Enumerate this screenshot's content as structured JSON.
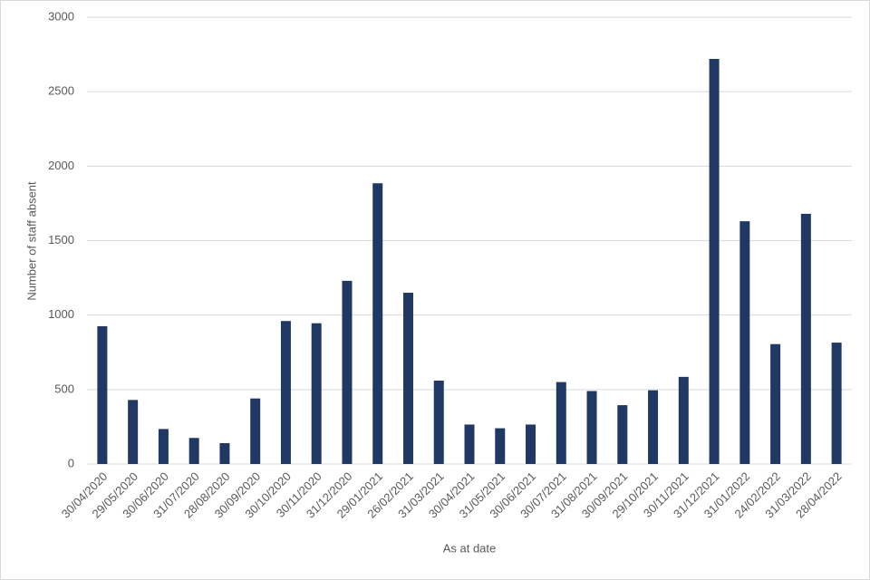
{
  "chart_data": {
    "type": "bar",
    "x_label": "As at date",
    "y_label": "Number of staff absent",
    "categories": [
      "30/04/2020",
      "29/05/2020",
      "30/06/2020",
      "31/07/2020",
      "28/08/2020",
      "30/09/2020",
      "30/10/2020",
      "30/11/2020",
      "31/12/2020",
      "29/01/2021",
      "26/02/2021",
      "31/03/2021",
      "30/04/2021",
      "31/05/2021",
      "30/06/2021",
      "30/07/2021",
      "31/08/2021",
      "30/09/2021",
      "29/10/2021",
      "30/11/2021",
      "31/12/2021",
      "31/01/2022",
      "24/02/2022",
      "31/03/2022",
      "28/04/2022"
    ],
    "values": [
      925,
      430,
      235,
      175,
      140,
      440,
      960,
      945,
      1230,
      1885,
      1150,
      560,
      265,
      240,
      265,
      550,
      490,
      395,
      495,
      585,
      2720,
      1630,
      805,
      1680,
      815
    ],
    "color": "#203864",
    "ylim": [
      0,
      3000
    ],
    "yticks": [
      0,
      500,
      1000,
      1500,
      2000,
      2500,
      3000
    ],
    "grid": true
  }
}
